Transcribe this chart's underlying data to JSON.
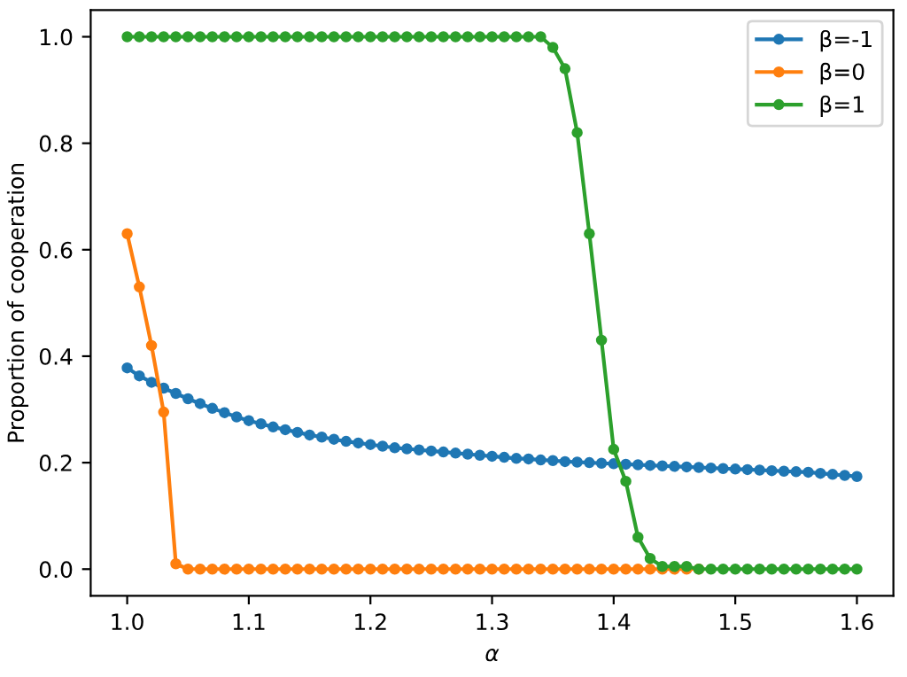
{
  "chart_data": {
    "type": "line",
    "xlabel": "α",
    "ylabel": "Proportion of cooperation",
    "xlim": [
      0.97,
      1.63
    ],
    "ylim": [
      -0.05,
      1.05
    ],
    "xticks": [
      {
        "value": 1.0,
        "label": "1.0"
      },
      1.1,
      1.2,
      1.3,
      1.4,
      1.5,
      1.6
    ],
    "yticks": [
      {
        "value": 0.0,
        "label": "0.0"
      },
      0.2,
      0.4,
      0.6,
      0.8,
      {
        "value": 1.0,
        "label": "1.0"
      }
    ],
    "grid": false,
    "legend": "top right",
    "marker": "circle",
    "line_style": "solid",
    "series": [
      {
        "name": "β=-1",
        "color": "#1f77b4",
        "x": [
          1.0,
          1.01,
          1.02,
          1.03,
          1.04,
          1.05,
          1.06,
          1.07,
          1.08,
          1.09,
          1.1,
          1.11,
          1.12,
          1.13,
          1.14,
          1.15,
          1.16,
          1.17,
          1.18,
          1.19,
          1.2,
          1.21,
          1.22,
          1.23,
          1.24,
          1.25,
          1.26,
          1.27,
          1.28,
          1.29,
          1.3,
          1.31,
          1.32,
          1.33,
          1.34,
          1.35,
          1.36,
          1.37,
          1.38,
          1.39,
          1.4,
          1.41,
          1.42,
          1.43,
          1.44,
          1.45,
          1.46,
          1.47,
          1.48,
          1.49,
          1.5,
          1.51,
          1.52,
          1.53,
          1.54,
          1.55,
          1.56,
          1.57,
          1.58,
          1.59,
          1.6
        ],
        "values": [
          0.378,
          0.363,
          0.351,
          0.34,
          0.33,
          0.32,
          0.311,
          0.302,
          0.294,
          0.286,
          0.279,
          0.273,
          0.267,
          0.262,
          0.257,
          0.252,
          0.248,
          0.244,
          0.24,
          0.237,
          0.234,
          0.231,
          0.228,
          0.226,
          0.224,
          0.222,
          0.22,
          0.218,
          0.216,
          0.214,
          0.212,
          0.21,
          0.208,
          0.207,
          0.205,
          0.204,
          0.202,
          0.201,
          0.2,
          0.199,
          0.198,
          0.197,
          0.196,
          0.195,
          0.194,
          0.193,
          0.192,
          0.191,
          0.19,
          0.189,
          0.188,
          0.187,
          0.186,
          0.185,
          0.184,
          0.183,
          0.182,
          0.18,
          0.178,
          0.176,
          0.174
        ]
      },
      {
        "name": "β=0",
        "color": "#ff7f0e",
        "x": [
          1.0,
          1.01,
          1.02,
          1.03,
          1.04,
          1.05,
          1.06,
          1.07,
          1.08,
          1.09,
          1.1,
          1.11,
          1.12,
          1.13,
          1.14,
          1.15,
          1.16,
          1.17,
          1.18,
          1.19,
          1.2,
          1.21,
          1.22,
          1.23,
          1.24,
          1.25,
          1.26,
          1.27,
          1.28,
          1.29,
          1.3,
          1.31,
          1.32,
          1.33,
          1.34,
          1.35,
          1.36,
          1.37,
          1.38,
          1.39,
          1.4,
          1.41,
          1.42,
          1.43,
          1.44,
          1.45,
          1.46,
          1.47
        ],
        "values": [
          0.63,
          0.53,
          0.42,
          0.295,
          0.01,
          0,
          0,
          0,
          0,
          0,
          0,
          0,
          0,
          0,
          0,
          0,
          0,
          0,
          0,
          0,
          0,
          0,
          0,
          0,
          0,
          0,
          0,
          0,
          0,
          0,
          0,
          0,
          0,
          0,
          0,
          0,
          0,
          0,
          0,
          0,
          0,
          0,
          0,
          0,
          0,
          0,
          0,
          0
        ]
      },
      {
        "name": "β=1",
        "color": "#2ca02c",
        "x": [
          1.0,
          1.01,
          1.02,
          1.03,
          1.04,
          1.05,
          1.06,
          1.07,
          1.08,
          1.09,
          1.1,
          1.11,
          1.12,
          1.13,
          1.14,
          1.15,
          1.16,
          1.17,
          1.18,
          1.19,
          1.2,
          1.21,
          1.22,
          1.23,
          1.24,
          1.25,
          1.26,
          1.27,
          1.28,
          1.29,
          1.3,
          1.31,
          1.32,
          1.33,
          1.34,
          1.35,
          1.36,
          1.37,
          1.38,
          1.39,
          1.4,
          1.41,
          1.42,
          1.43,
          1.44,
          1.45,
          1.46,
          1.47,
          1.48,
          1.49,
          1.5,
          1.51,
          1.52,
          1.53,
          1.54,
          1.55,
          1.56,
          1.57,
          1.58,
          1.59,
          1.6
        ],
        "values": [
          1,
          1,
          1,
          1,
          1,
          1,
          1,
          1,
          1,
          1,
          1,
          1,
          1,
          1,
          1,
          1,
          1,
          1,
          1,
          1,
          1,
          1,
          1,
          1,
          1,
          1,
          1,
          1,
          1,
          1,
          1,
          1,
          1,
          1,
          1,
          0.98,
          0.94,
          0.82,
          0.63,
          0.43,
          0.225,
          0.165,
          0.06,
          0.02,
          0.005,
          0.005,
          0.005,
          0,
          0,
          0,
          0,
          0,
          0,
          0,
          0,
          0,
          0,
          0,
          0,
          0,
          0
        ]
      }
    ]
  }
}
